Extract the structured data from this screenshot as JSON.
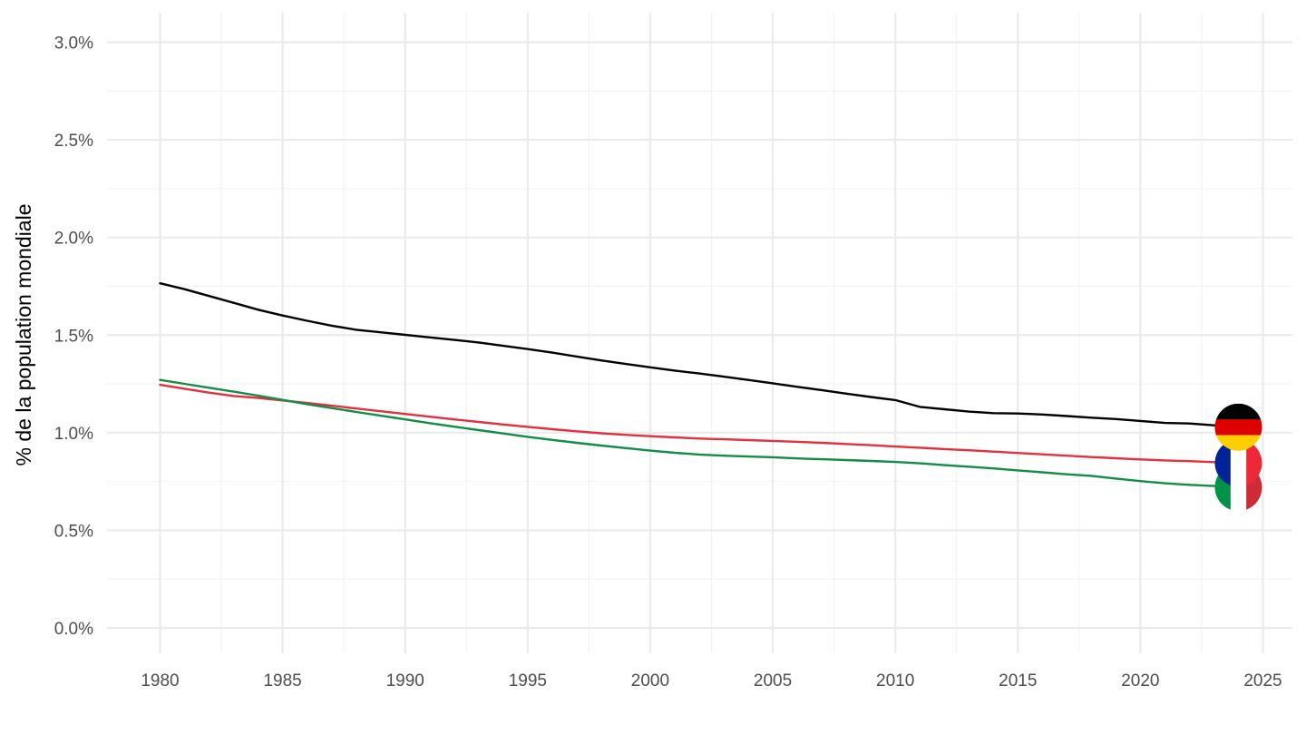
{
  "chart_data": {
    "type": "line",
    "title": "",
    "xlabel": "",
    "ylabel": "% de la population mondiale",
    "xlim": [
      1978,
      2026
    ],
    "ylim": [
      -0.1,
      3.15
    ],
    "x_ticks": [
      1980,
      1985,
      1990,
      1995,
      2000,
      2005,
      2010,
      2015,
      2020,
      2025
    ],
    "y_ticks": [
      0.0,
      0.5,
      1.0,
      1.5,
      2.0,
      2.5,
      3.0
    ],
    "y_tick_labels": [
      "0.0%",
      "0.5%",
      "1.0%",
      "1.5%",
      "2.0%",
      "2.5%",
      "3.0%"
    ],
    "grid": true,
    "legend": "flag markers at line ends",
    "series": [
      {
        "country": "Germany",
        "flag": "germany-flag-icon",
        "color": "#000000",
        "x": [
          1980,
          1981,
          1982,
          1983,
          1984,
          1985,
          1986,
          1987,
          1988,
          1989,
          1990,
          1991,
          1992,
          1993,
          1994,
          1995,
          1996,
          1997,
          1998,
          1999,
          2000,
          2001,
          2002,
          2003,
          2004,
          2005,
          2006,
          2007,
          2008,
          2009,
          2010,
          2011,
          2012,
          2013,
          2014,
          2015,
          2016,
          2017,
          2018,
          2019,
          2020,
          2021,
          2022,
          2023,
          2024
        ],
        "values": [
          1.765,
          1.735,
          1.7,
          1.665,
          1.63,
          1.6,
          1.573,
          1.548,
          1.527,
          1.514,
          1.501,
          1.488,
          1.475,
          1.462,
          1.445,
          1.428,
          1.41,
          1.39,
          1.37,
          1.352,
          1.335,
          1.318,
          1.303,
          1.287,
          1.27,
          1.253,
          1.235,
          1.218,
          1.2,
          1.183,
          1.167,
          1.132,
          1.12,
          1.108,
          1.1,
          1.098,
          1.093,
          1.085,
          1.077,
          1.07,
          1.06,
          1.05,
          1.047,
          1.038,
          1.028
        ]
      },
      {
        "country": "France",
        "flag": "france-flag-icon",
        "color": "#e4303e",
        "x": [
          1980,
          1981,
          1982,
          1983,
          1984,
          1985,
          1986,
          1987,
          1988,
          1989,
          1990,
          1991,
          1992,
          1993,
          1994,
          1995,
          1996,
          1997,
          1998,
          1999,
          2000,
          2001,
          2002,
          2003,
          2004,
          2005,
          2006,
          2007,
          2008,
          2009,
          2010,
          2011,
          2012,
          2013,
          2014,
          2015,
          2016,
          2017,
          2018,
          2019,
          2020,
          2021,
          2022,
          2023,
          2024
        ],
        "values": [
          1.245,
          1.225,
          1.205,
          1.188,
          1.178,
          1.165,
          1.152,
          1.138,
          1.124,
          1.11,
          1.096,
          1.082,
          1.068,
          1.055,
          1.042,
          1.03,
          1.018,
          1.007,
          0.997,
          0.989,
          0.982,
          0.976,
          0.97,
          0.966,
          0.962,
          0.958,
          0.953,
          0.948,
          0.942,
          0.936,
          0.929,
          0.923,
          0.916,
          0.91,
          0.903,
          0.896,
          0.889,
          0.882,
          0.875,
          0.869,
          0.863,
          0.858,
          0.854,
          0.849,
          0.845
        ]
      },
      {
        "country": "Italy",
        "flag": "italy-flag-icon",
        "color": "#118d47",
        "x": [
          1980,
          1981,
          1982,
          1983,
          1984,
          1985,
          1986,
          1987,
          1988,
          1989,
          1990,
          1991,
          1992,
          1993,
          1994,
          1995,
          1996,
          1997,
          1998,
          1999,
          2000,
          2001,
          2002,
          2003,
          2004,
          2005,
          2006,
          2007,
          2008,
          2009,
          2010,
          2011,
          2012,
          2013,
          2014,
          2015,
          2016,
          2017,
          2018,
          2019,
          2020,
          2021,
          2022,
          2023,
          2024
        ],
        "values": [
          1.27,
          1.25,
          1.23,
          1.21,
          1.19,
          1.168,
          1.146,
          1.126,
          1.106,
          1.087,
          1.068,
          1.049,
          1.031,
          1.013,
          0.996,
          0.979,
          0.963,
          0.948,
          0.934,
          0.921,
          0.908,
          0.897,
          0.888,
          0.882,
          0.878,
          0.874,
          0.868,
          0.864,
          0.86,
          0.855,
          0.85,
          0.843,
          0.834,
          0.826,
          0.817,
          0.807,
          0.797,
          0.787,
          0.779,
          0.765,
          0.752,
          0.741,
          0.733,
          0.727,
          0.72
        ]
      }
    ]
  }
}
